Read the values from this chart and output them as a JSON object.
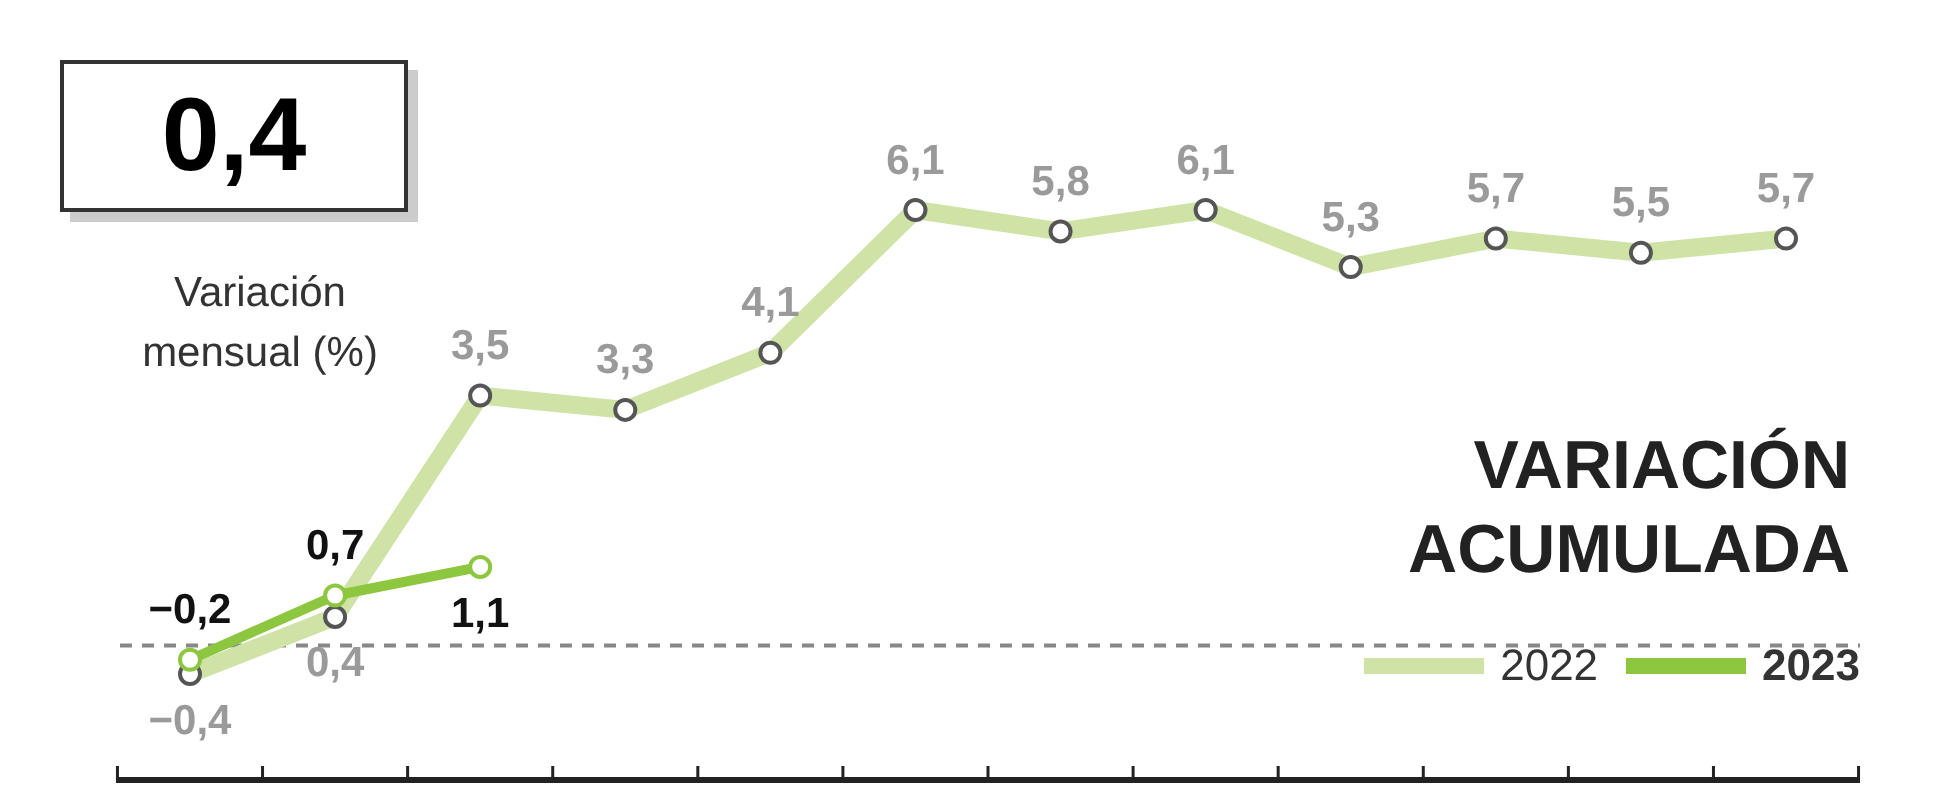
{
  "chart_data": {
    "type": "line",
    "title": "VARIACIÓN ACUMULADA",
    "annotations": [
      "0,4",
      "Variación mensual (%)"
    ],
    "categories": [
      null,
      null,
      null,
      null,
      null,
      null,
      null,
      null,
      null,
      null,
      null,
      null
    ],
    "series": [
      {
        "name": "2022",
        "color": "#cfe3a6",
        "values": [
          -0.4,
          0.4,
          3.5,
          3.3,
          4.1,
          6.1,
          5.8,
          6.1,
          5.3,
          5.7,
          5.5,
          5.7
        ],
        "value_labels": [
          "−0,4",
          "0,4",
          "3,5",
          "3,3",
          "4,1",
          "6,1",
          "5,8",
          "6,1",
          "5,3",
          "5,7",
          "5,5",
          "5,7"
        ]
      },
      {
        "name": "2023",
        "color": "#8dc63f",
        "values": [
          -0.2,
          0.7,
          1.1,
          null,
          null,
          null,
          null,
          null,
          null,
          null,
          null,
          null
        ],
        "value_labels": [
          "−0,2",
          "0,7",
          "1,1",
          null,
          null,
          null,
          null,
          null,
          null,
          null,
          null,
          null
        ]
      }
    ],
    "grid": false,
    "legend": "bottom right",
    "marker": "circle",
    "line_style": "solid",
    "ref_lines": [
      {
        "axis": "y",
        "value": 0,
        "color": "#888888",
        "line_style": "dashed"
      }
    ]
  }
}
